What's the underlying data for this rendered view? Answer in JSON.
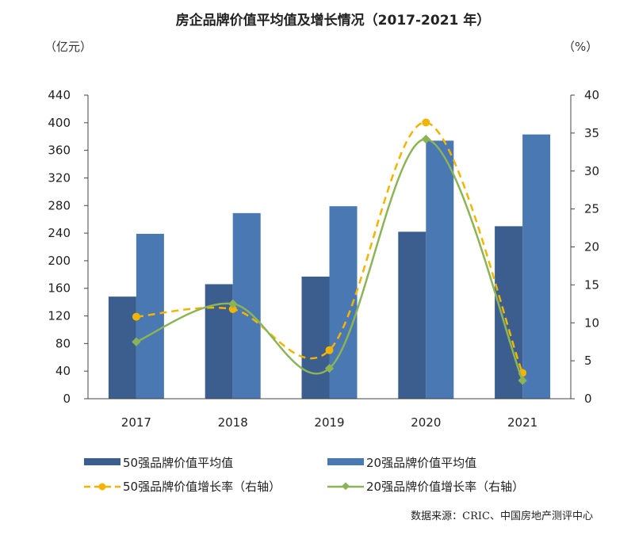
{
  "chart_data": {
    "type": "bar",
    "title": "房企品牌价值平均值及增长情况（2017-2021 年）",
    "categories": [
      "2017",
      "2018",
      "2019",
      "2020",
      "2021"
    ],
    "y_left": {
      "unit_label": "（亿元）",
      "ylim": [
        0,
        440
      ],
      "ticks": [
        0,
        40,
        80,
        120,
        160,
        200,
        240,
        280,
        320,
        360,
        400,
        440
      ]
    },
    "y_right": {
      "unit_label": "（%）",
      "ylim": [
        0,
        40
      ],
      "ticks": [
        0,
        5,
        10,
        15,
        20,
        25,
        30,
        35,
        40
      ]
    },
    "series": [
      {
        "name": "50强品牌价值平均值",
        "type": "bar",
        "axis": "left",
        "color": "#3b5e8e",
        "values": [
          148,
          166,
          177,
          242,
          250
        ]
      },
      {
        "name": "20强品牌价值平均值",
        "type": "bar",
        "axis": "left",
        "color": "#4a78b2",
        "values": [
          239,
          269,
          279,
          374,
          383
        ]
      },
      {
        "name": "50强品牌价值增长率（右轴）",
        "type": "line",
        "style": "dashed",
        "marker": "circle",
        "axis": "right",
        "color": "#f2b400",
        "values": [
          10.8,
          11.8,
          6.4,
          36.4,
          3.4
        ]
      },
      {
        "name": "20强品牌价值增长率（右轴）",
        "type": "line",
        "style": "solid",
        "marker": "diamond",
        "axis": "right",
        "color": "#8cb457",
        "values": [
          7.5,
          12.5,
          4.0,
          34.2,
          2.4
        ]
      }
    ],
    "grid": false,
    "legend_position": "bottom"
  },
  "source_note": "数据来源：CRIC、中国房地产测评中心"
}
